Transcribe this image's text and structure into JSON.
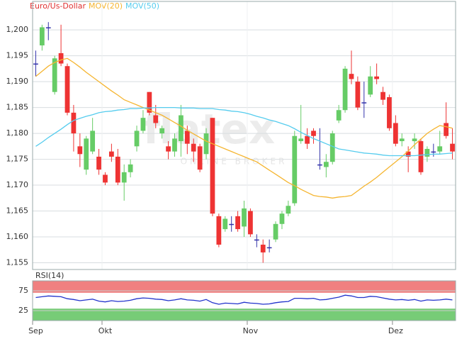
{
  "chart_data": {
    "type": "candlestick",
    "title": "Euro/Us-Dollar",
    "title_color": "#e03030",
    "watermark": "flatex",
    "watermark_sub": "ONLINE BROKER",
    "categories": [
      null,
      null,
      null,
      null,
      null,
      null,
      null,
      null,
      null,
      null,
      null,
      "Okt",
      null,
      null,
      null,
      null,
      null,
      null,
      null,
      null,
      null,
      null,
      null,
      null,
      null,
      null,
      null,
      null,
      null,
      null,
      null,
      null,
      null,
      null,
      "Nov",
      null,
      null,
      null,
      null,
      null,
      null,
      null,
      null,
      null,
      null,
      null,
      null,
      null,
      null,
      null,
      null,
      null,
      null,
      null,
      null,
      null,
      null,
      "Dez",
      null,
      null,
      null,
      null,
      null,
      null,
      null,
      null,
      null
    ],
    "first_label": "Sep",
    "open": [
      1.1935,
      1.197,
      1.2005,
      1.188,
      1.1955,
      1.193,
      1.184,
      1.1775,
      1.173,
      1.1765,
      1.1755,
      1.172,
      1.1765,
      1.1755,
      1.1705,
      1.1725,
      1.1775,
      1.1805,
      1.188,
      1.1835,
      1.18,
      1.1775,
      1.1765,
      1.1785,
      1.1805,
      1.178,
      1.1775,
      1.176,
      1.183,
      1.164,
      1.1615,
      1.1625,
      1.164,
      1.162,
      1.165,
      1.1595,
      1.1585,
      1.158,
      1.1595,
      1.1625,
      1.1645,
      1.1665,
      1.1785,
      1.1795,
      1.1805,
      1.174,
      1.1735,
      1.1745,
      1.1825,
      1.1845,
      1.1915,
      1.19,
      1.186,
      1.1875,
      1.191,
      1.188,
      1.187,
      1.182,
      1.1785,
      1.1765,
      1.1785,
      1.1785,
      1.1755,
      1.1765,
      1.1765,
      1.182,
      1.178
    ],
    "high": [
      1.196,
      1.201,
      1.2015,
      1.195,
      1.201,
      1.1935,
      1.1855,
      1.18,
      1.1795,
      1.183,
      1.177,
      1.1725,
      1.178,
      1.177,
      1.174,
      1.175,
      1.1815,
      1.1845,
      1.188,
      1.1855,
      1.1815,
      1.1785,
      1.18,
      1.1855,
      1.1815,
      1.179,
      1.178,
      1.181,
      1.183,
      1.1645,
      1.164,
      1.164,
      1.165,
      1.167,
      1.1655,
      1.1605,
      1.1595,
      1.1595,
      1.163,
      1.165,
      1.167,
      1.1805,
      1.1855,
      1.181,
      1.181,
      1.181,
      1.176,
      1.1805,
      1.1855,
      1.193,
      1.196,
      1.191,
      1.19,
      1.193,
      1.1935,
      1.189,
      1.1875,
      1.1835,
      1.18,
      1.1775,
      1.18,
      1.179,
      1.1775,
      1.178,
      1.1805,
      1.186,
      1.181
    ],
    "low": [
      1.191,
      1.196,
      1.198,
      1.1875,
      1.193,
      1.1835,
      1.1765,
      1.1735,
      1.172,
      1.176,
      1.172,
      1.17,
      1.1745,
      1.17,
      1.167,
      1.1715,
      1.1765,
      1.18,
      1.1835,
      1.181,
      1.179,
      1.175,
      1.1755,
      1.1755,
      1.176,
      1.1745,
      1.1725,
      1.175,
      1.164,
      1.158,
      1.161,
      1.161,
      1.161,
      1.16,
      1.16,
      1.158,
      1.155,
      1.157,
      1.159,
      1.1615,
      1.164,
      1.166,
      1.178,
      1.177,
      1.178,
      1.173,
      1.1715,
      1.174,
      1.182,
      1.184,
      1.1895,
      1.1845,
      1.183,
      1.187,
      1.1895,
      1.1855,
      1.1805,
      1.1775,
      1.1775,
      1.1725,
      1.177,
      1.172,
      1.1745,
      1.1755,
      1.176,
      1.179,
      1.175
    ],
    "close": [
      1.1935,
      1.2005,
      1.2005,
      1.1945,
      1.1935,
      1.184,
      1.18,
      1.176,
      1.179,
      1.1805,
      1.173,
      1.1705,
      1.1755,
      1.1705,
      1.1725,
      1.174,
      1.1805,
      1.183,
      1.184,
      1.182,
      1.181,
      1.1765,
      1.179,
      1.1835,
      1.178,
      1.1765,
      1.173,
      1.18,
      1.1645,
      1.1585,
      1.1635,
      1.1625,
      1.1615,
      1.1655,
      1.1605,
      1.1595,
      1.157,
      1.158,
      1.1625,
      1.1645,
      1.166,
      1.1795,
      1.179,
      1.178,
      1.1795,
      1.174,
      1.1745,
      1.18,
      1.1845,
      1.1925,
      1.1905,
      1.185,
      1.186,
      1.191,
      1.1905,
      1.1865,
      1.181,
      1.178,
      1.179,
      1.1755,
      1.179,
      1.1725,
      1.177,
      1.1765,
      1.1775,
      1.1795,
      1.1765
    ],
    "up_color": "#66cc66",
    "down_color": "#ee3333",
    "flat_color": "#3333aa",
    "series": [
      {
        "name": "MOV(20)",
        "color": "#f5b530",
        "values": [
          1.191,
          1.192,
          1.193,
          1.1937,
          1.1942,
          1.1945,
          1.1937,
          1.1928,
          1.1918,
          1.1909,
          1.19,
          1.1891,
          1.1882,
          1.1874,
          1.1865,
          1.186,
          1.1855,
          1.185,
          1.1845,
          1.184,
          1.1835,
          1.1828,
          1.1821,
          1.1814,
          1.1806,
          1.1799,
          1.1792,
          1.1785,
          1.178,
          1.1775,
          1.177,
          1.1765,
          1.176,
          1.1755,
          1.175,
          1.1745,
          1.1737,
          1.1729,
          1.1721,
          1.1713,
          1.1705,
          1.1699,
          1.1692,
          1.1686,
          1.168,
          1.1678,
          1.1677,
          1.1675,
          1.1677,
          1.1678,
          1.168,
          1.1689,
          1.1698,
          1.1706,
          1.1715,
          1.1725,
          1.1735,
          1.1745,
          1.1755,
          1.1766,
          1.1778,
          1.1789,
          1.18,
          1.1808,
          1.1815,
          1.1813,
          1.181
        ]
      },
      {
        "name": "MOV(50)",
        "color": "#55ccee",
        "values": [
          1.1775,
          1.1783,
          1.1792,
          1.18,
          1.1808,
          1.1817,
          1.1825,
          1.1829,
          1.1833,
          1.1836,
          1.184,
          1.1842,
          1.1843,
          1.1845,
          1.1846,
          1.1848,
          1.1848,
          1.1849,
          1.1849,
          1.185,
          1.185,
          1.185,
          1.185,
          1.1849,
          1.1849,
          1.1849,
          1.1848,
          1.1848,
          1.1848,
          1.1846,
          1.1845,
          1.1843,
          1.1842,
          1.184,
          1.1837,
          1.1833,
          1.183,
          1.1826,
          1.1823,
          1.1819,
          1.1815,
          1.1809,
          1.1802,
          1.1796,
          1.179,
          1.1785,
          1.178,
          1.1775,
          1.177,
          1.1768,
          1.1766,
          1.1764,
          1.1762,
          1.1761,
          1.176,
          1.1758,
          1.1757,
          1.1757,
          1.1757,
          1.1757,
          1.1757,
          1.1758,
          1.1759,
          1.176,
          1.176,
          1.1761,
          1.1762
        ]
      }
    ],
    "ylim": [
      1.1537,
      1.2055
    ],
    "yticks": [
      {
        "value": 1.155,
        "label": "1,155"
      },
      {
        "value": 1.16,
        "label": "1,160"
      },
      {
        "value": 1.165,
        "label": "1,165"
      },
      {
        "value": 1.17,
        "label": "1,170"
      },
      {
        "value": 1.175,
        "label": "1,175"
      },
      {
        "value": 1.18,
        "label": "1,180"
      },
      {
        "value": 1.185,
        "label": "1,185"
      },
      {
        "value": 1.19,
        "label": "1,190"
      },
      {
        "value": 1.195,
        "label": "1,195"
      },
      {
        "value": 1.2,
        "label": "1,200"
      }
    ],
    "grid": true,
    "rsi": {
      "name": "RSI(14)",
      "color": "#2233cc",
      "ylim": [
        0,
        100
      ],
      "yticks": [
        25,
        75
      ],
      "high_band": [
        70,
        100
      ],
      "high_color": "#f08080",
      "low_band": [
        0,
        30
      ],
      "low_color": "#77cc77",
      "values": [
        58,
        60,
        62,
        61,
        60,
        55,
        53,
        50,
        52,
        54,
        49,
        47,
        50,
        48,
        49,
        51,
        55,
        57,
        56,
        54,
        53,
        50,
        52,
        55,
        52,
        51,
        49,
        53,
        45,
        41,
        44,
        43,
        42,
        46,
        44,
        43,
        41,
        42,
        45,
        47,
        48,
        56,
        56,
        55,
        56,
        52,
        53,
        56,
        59,
        64,
        62,
        58,
        58,
        61,
        60,
        57,
        54,
        52,
        53,
        51,
        53,
        49,
        52,
        51,
        52,
        54,
        52
      ]
    }
  }
}
